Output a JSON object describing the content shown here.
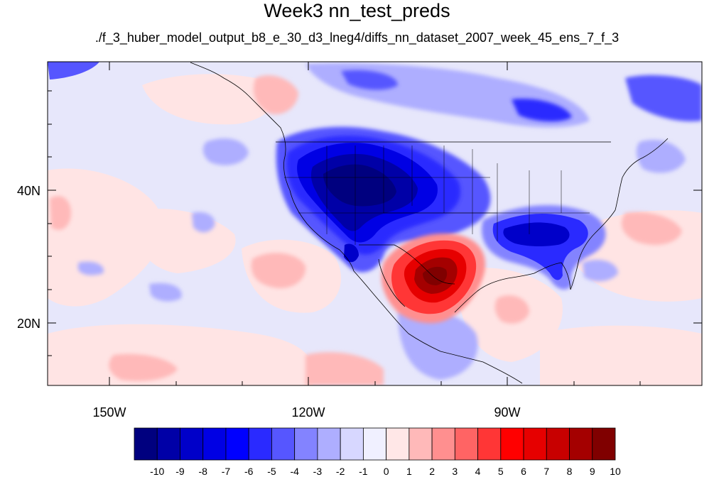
{
  "title": "Week3 nn_test_preds",
  "subtitle": "./f_3_huber_model_output_b8_e_30_d3_lneg4/diffs_nn_dataset_2007_week_45_ens_7_f_3",
  "map": {
    "region": "North America, eastern Pacific and Gulf of Mexico",
    "lon_labels": [
      "150W",
      "120W",
      "90W"
    ],
    "lat_labels": [
      "40N",
      "20N"
    ],
    "features": [
      {
        "name": "Western US",
        "anomaly": "strong negative (about -10)"
      },
      {
        "name": "Southeastern US",
        "anomaly": "negative (about -6)"
      },
      {
        "name": "Northern Mexico / Texas",
        "anomaly": "strong positive (about +9)"
      },
      {
        "name": "Eastern Pacific ocean",
        "anomaly": "weak positive (+1 to +2)"
      }
    ]
  },
  "colorbar": {
    "labels": [
      "-10",
      "-9",
      "-8",
      "-7",
      "-6",
      "-5",
      "-4",
      "-3",
      "-2",
      "-1",
      "0",
      "1",
      "2",
      "3",
      "4",
      "5",
      "6",
      "7",
      "8",
      "9",
      "10"
    ],
    "colors": [
      "#00007f",
      "#0000a7",
      "#0000c9",
      "#0000e4",
      "#0000ff",
      "#2a2aff",
      "#5656ff",
      "#8383ff",
      "#aeaeff",
      "#d7d7ff",
      "#f0f0ff",
      "#ffe7e7",
      "#ffb9b9",
      "#ff8f8f",
      "#ff6464",
      "#ff3636",
      "#ff0000",
      "#e60000",
      "#c80000",
      "#a40000",
      "#800000"
    ]
  }
}
